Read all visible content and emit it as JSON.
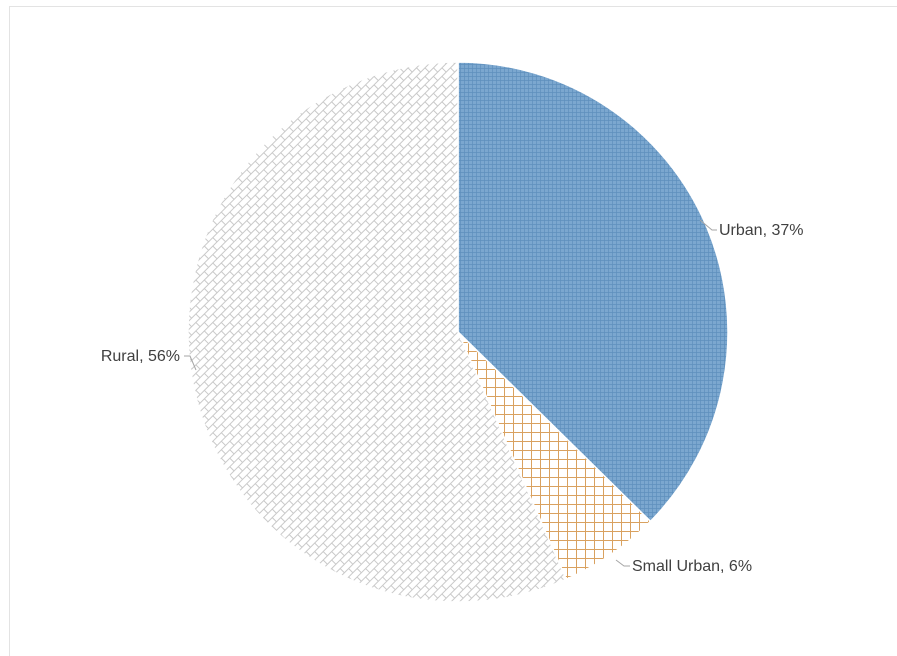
{
  "chart_data": {
    "type": "pie",
    "title": "",
    "start_angle_deg": 0,
    "direction": "clockwise",
    "legend": "none",
    "slices": [
      {
        "name": "Urban",
        "value": 37,
        "label": "Urban, 37%",
        "color": "#7ba7cf",
        "pattern": "fine-grid",
        "pattern_color": "#5e8fbd"
      },
      {
        "name": "Small Urban",
        "value": 6,
        "label": "Small Urban, 6%",
        "color": "#ffffff",
        "pattern": "cross-hatch",
        "pattern_color": "#d9a15f"
      },
      {
        "name": "Rural",
        "value": 56,
        "label": "Rural, 56%",
        "color": "#ffffff",
        "pattern": "brick",
        "pattern_color": "#c9c9c9"
      }
    ]
  }
}
